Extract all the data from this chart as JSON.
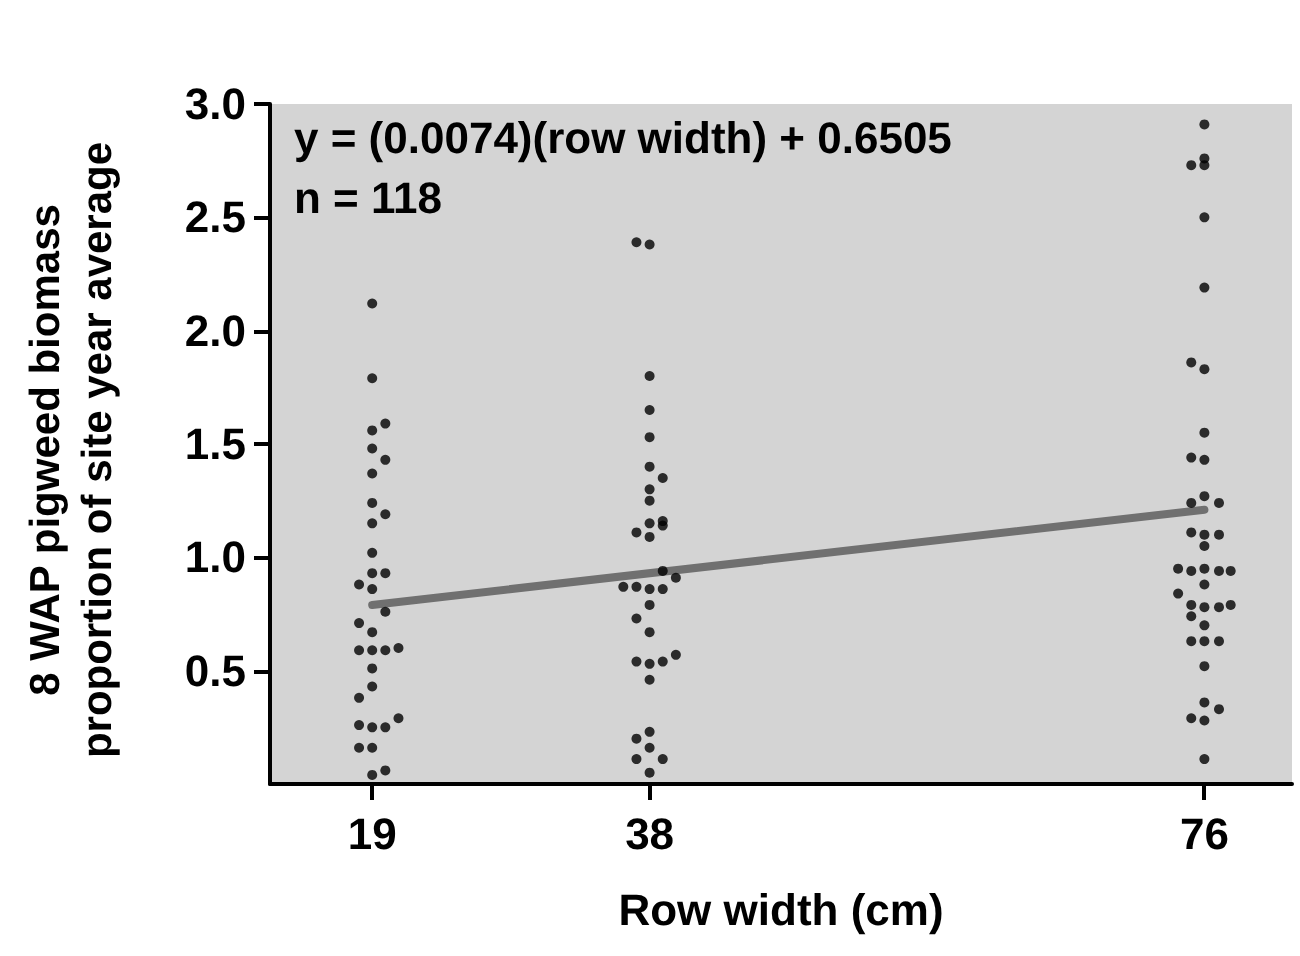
{
  "chart_data": {
    "type": "scatter",
    "xlabel": "Row width (cm)",
    "ylabel": "8 WAP pigweed biomass\nproportion of site year average",
    "annotations": [
      "y = (0.0074)(row width) + 0.6505",
      "n = 118"
    ],
    "xlim": [
      12,
      82
    ],
    "xticks": [
      19,
      38,
      76
    ],
    "ylim": [
      0,
      3
    ],
    "yticks": [
      0.5,
      {
        "value": 1,
        "label": "1.0"
      },
      1.5,
      {
        "value": 2,
        "label": "2.0"
      },
      2.5,
      {
        "value": 3,
        "label": "3.0"
      }
    ],
    "grid": false,
    "marker": "circle",
    "series": [
      {
        "color": "#000000",
        "x": [
          19,
          19,
          19.9,
          19,
          19,
          19.9,
          19,
          19,
          19.9,
          19,
          19,
          19,
          19.9,
          18.1,
          19,
          19.9,
          18.1,
          19,
          18.1,
          19,
          19.9,
          20.8,
          19,
          19,
          18.1,
          20.8,
          18.1,
          19,
          19.9,
          18.1,
          19,
          19.9,
          19,
          37.1,
          38,
          38,
          38,
          38,
          38,
          38.9,
          38,
          38,
          38.9,
          38.9,
          38,
          37.1,
          38,
          38.9,
          39.8,
          36.2,
          37.1,
          38,
          38.9,
          38,
          37.1,
          38,
          37.1,
          38,
          38.9,
          39.8,
          38,
          38,
          37.1,
          38,
          37.1,
          38.9,
          38,
          76,
          76,
          75.1,
          76,
          76,
          76,
          75.1,
          76,
          76,
          75.1,
          76,
          76,
          75.1,
          77,
          75.1,
          76,
          77,
          76,
          74.2,
          75.1,
          76,
          77,
          77.8,
          76,
          74.2,
          75.1,
          76,
          77,
          77.8,
          75.1,
          76,
          75.1,
          76,
          77,
          76,
          76,
          77,
          75.1,
          76,
          76
        ],
        "values": [
          2.12,
          1.79,
          1.59,
          1.56,
          1.48,
          1.43,
          1.37,
          1.24,
          1.19,
          1.15,
          1.02,
          0.93,
          0.93,
          0.88,
          0.86,
          0.76,
          0.71,
          0.67,
          0.59,
          0.59,
          0.59,
          0.6,
          0.51,
          0.43,
          0.38,
          0.29,
          0.26,
          0.25,
          0.25,
          0.16,
          0.16,
          0.06,
          0.04,
          2.39,
          2.38,
          1.8,
          1.65,
          1.53,
          1.4,
          1.35,
          1.3,
          1.25,
          1.16,
          1.14,
          1.15,
          1.11,
          1.09,
          0.94,
          0.91,
          0.87,
          0.87,
          0.86,
          0.86,
          0.79,
          0.73,
          0.67,
          0.54,
          0.53,
          0.54,
          0.57,
          0.46,
          0.23,
          0.2,
          0.16,
          0.11,
          0.11,
          0.05,
          2.91,
          2.76,
          2.73,
          2.73,
          2.5,
          2.19,
          1.86,
          1.83,
          1.55,
          1.44,
          1.43,
          1.27,
          1.24,
          1.24,
          1.11,
          1.1,
          1.1,
          1.05,
          0.95,
          0.94,
          0.95,
          0.94,
          0.94,
          0.88,
          0.84,
          0.79,
          0.78,
          0.78,
          0.79,
          0.74,
          0.7,
          0.63,
          0.63,
          0.63,
          0.52,
          0.36,
          0.33,
          0.29,
          0.28,
          0.11
        ]
      },
      {
        "type": "line",
        "color": "#707070",
        "marker": "none",
        "line_style": "solid",
        "x": [
          19,
          76
        ],
        "values": [
          0.79,
          1.21
        ]
      }
    ]
  }
}
